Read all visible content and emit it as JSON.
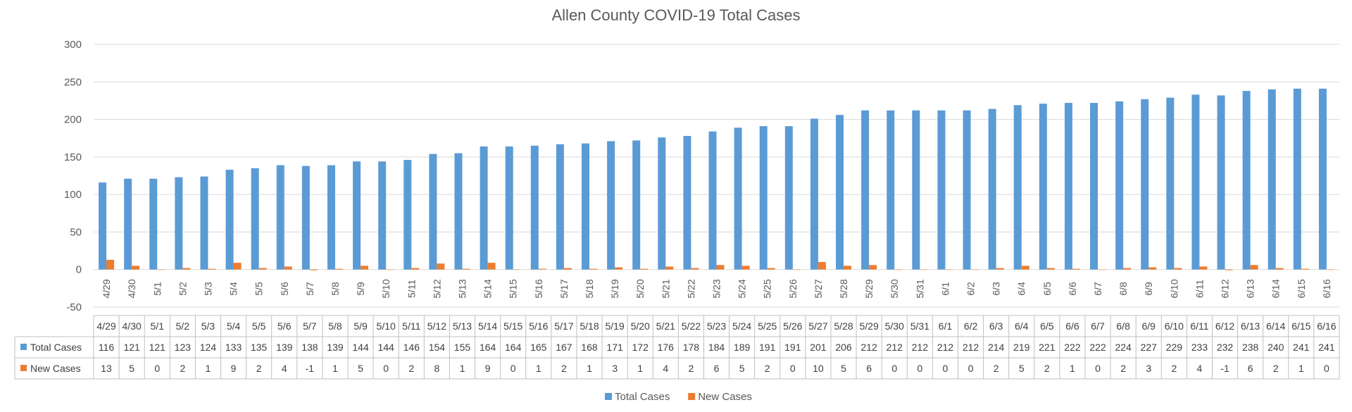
{
  "chart_data": {
    "type": "bar",
    "title": "Allen County COVID-19 Total Cases",
    "categories": [
      "4/29",
      "4/30",
      "5/1",
      "5/2",
      "5/3",
      "5/4",
      "5/5",
      "5/6",
      "5/7",
      "5/8",
      "5/9",
      "5/10",
      "5/11",
      "5/12",
      "5/13",
      "5/14",
      "5/15",
      "5/16",
      "5/17",
      "5/18",
      "5/19",
      "5/20",
      "5/21",
      "5/22",
      "5/23",
      "5/24",
      "5/25",
      "5/26",
      "5/27",
      "5/28",
      "5/29",
      "5/30",
      "5/31",
      "6/1",
      "6/2",
      "6/3",
      "6/4",
      "6/5",
      "6/6",
      "6/7",
      "6/8",
      "6/9",
      "6/10",
      "6/11",
      "6/12",
      "6/13",
      "6/14",
      "6/15",
      "6/16"
    ],
    "series": [
      {
        "name": "Total Cases",
        "color": "#5b9bd5",
        "values": [
          116,
          121,
          121,
          123,
          124,
          133,
          135,
          139,
          138,
          139,
          144,
          144,
          146,
          154,
          155,
          164,
          164,
          165,
          167,
          168,
          171,
          172,
          176,
          178,
          184,
          189,
          191,
          191,
          201,
          206,
          212,
          212,
          212,
          212,
          212,
          214,
          219,
          221,
          222,
          222,
          224,
          227,
          229,
          233,
          232,
          238,
          240,
          241,
          241
        ]
      },
      {
        "name": "New Cases",
        "color": "#ed7d31",
        "values": [
          13,
          5,
          0,
          2,
          1,
          9,
          2,
          4,
          -1,
          1,
          5,
          0,
          2,
          8,
          1,
          9,
          0,
          1,
          2,
          1,
          3,
          1,
          4,
          2,
          6,
          5,
          2,
          0,
          10,
          5,
          6,
          0,
          0,
          0,
          0,
          2,
          5,
          2,
          1,
          0,
          2,
          3,
          2,
          4,
          -1,
          6,
          2,
          1,
          0
        ]
      }
    ],
    "ylim": [
      -50,
      300
    ],
    "yticks": [
      -50,
      0,
      50,
      100,
      150,
      200,
      250,
      300
    ],
    "grid": true,
    "legend": "bottom",
    "data_table": true
  }
}
